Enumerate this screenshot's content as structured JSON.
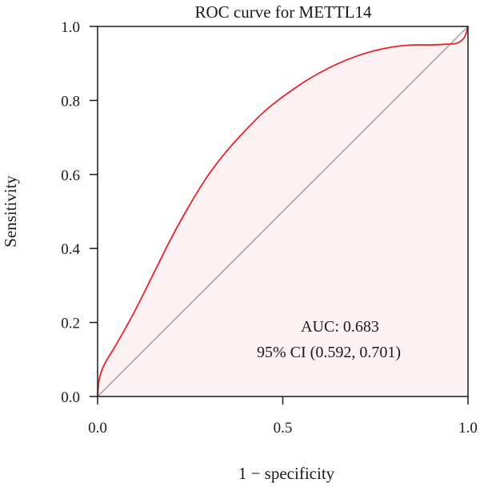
{
  "chart_data": {
    "type": "line",
    "title": "ROC curve for METTL14",
    "xlabel": "1 − specificity",
    "ylabel": "Sensitivity",
    "xlim": [
      0,
      1
    ],
    "ylim": [
      0,
      1
    ],
    "x_ticks": [
      0.0,
      0.5,
      1.0
    ],
    "x_tick_labels": [
      "0.0",
      "0.5",
      "1.0"
    ],
    "y_ticks": [
      0.0,
      0.2,
      0.4,
      0.6,
      0.8,
      1.0
    ],
    "y_tick_labels": [
      "0.0",
      "0.2",
      "0.4",
      "0.6",
      "0.8",
      "1.0"
    ],
    "grid": false,
    "legend": "none",
    "series": [
      {
        "color": "#e8242a",
        "fill": "#fcf1f3",
        "x": [
          0.0,
          0.005,
          0.02,
          0.05,
          0.1,
          0.15,
          0.2,
          0.25,
          0.3,
          0.35,
          0.4,
          0.45,
          0.5,
          0.55,
          0.6,
          0.65,
          0.7,
          0.75,
          0.8,
          0.85,
          0.9,
          0.94,
          0.97,
          0.99,
          1.0
        ],
        "y": [
          0.0,
          0.05,
          0.09,
          0.14,
          0.23,
          0.33,
          0.43,
          0.52,
          0.6,
          0.665,
          0.72,
          0.77,
          0.81,
          0.845,
          0.875,
          0.9,
          0.92,
          0.935,
          0.945,
          0.95,
          0.95,
          0.952,
          0.955,
          0.97,
          1.0
        ]
      },
      {
        "color": "#a0a0a0",
        "x": [
          0.0,
          1.0
        ],
        "y": [
          0.0,
          1.0
        ]
      }
    ],
    "annotations": {
      "auc": "AUC: 0.683",
      "ci": "95% CI (0.592, 0.701)"
    }
  }
}
